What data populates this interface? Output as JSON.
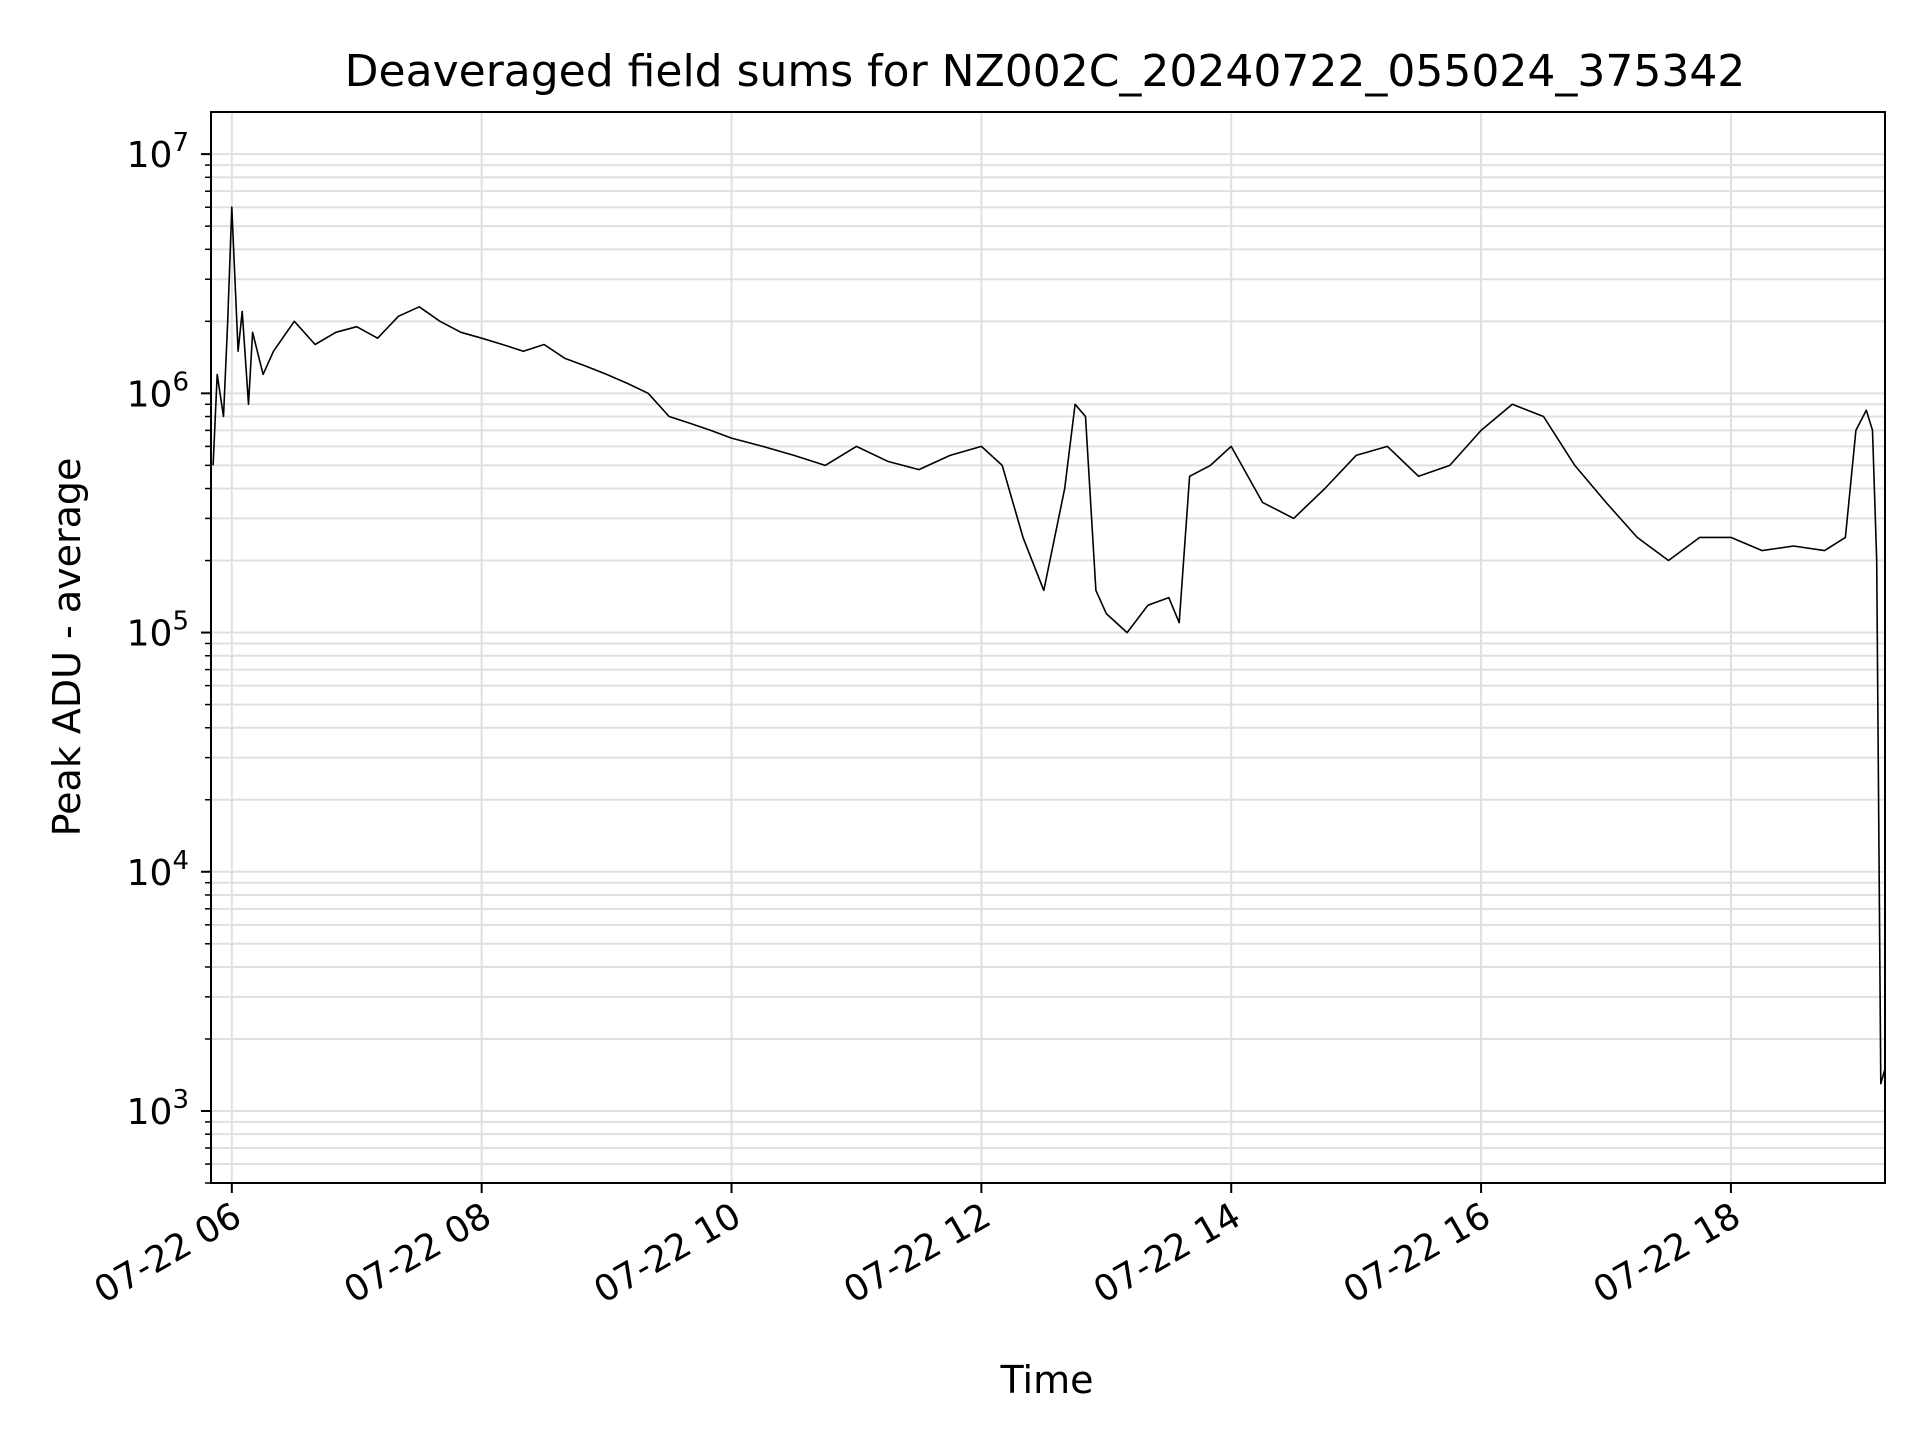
{
  "chart_data": {
    "type": "line",
    "title": "Deaveraged field sums for NZ002C_20240722_055024_375342",
    "xlabel": "Time",
    "ylabel": "Peak ADU - average",
    "yscale": "log",
    "ylim": [
      500,
      15000000
    ],
    "xlim": [
      "2024-07-22 05:50",
      "2024-07-22 19:14"
    ],
    "grid": true,
    "legend": "none",
    "colors": {
      "line": "#000000",
      "grid": "#e0e0e0",
      "axes": "#000000"
    },
    "x_ticks": [
      {
        "label": "07-22 06",
        "time": "2024-07-22 06:00"
      },
      {
        "label": "07-22 08",
        "time": "2024-07-22 08:00"
      },
      {
        "label": "07-22 10",
        "time": "2024-07-22 10:00"
      },
      {
        "label": "07-22 12",
        "time": "2024-07-22 12:00"
      },
      {
        "label": "07-22 14",
        "time": "2024-07-22 14:00"
      },
      {
        "label": "07-22 16",
        "time": "2024-07-22 16:00"
      },
      {
        "label": "07-22 18",
        "time": "2024-07-22 18:00"
      }
    ],
    "y_ticks": [
      {
        "base": "10",
        "exp": "3",
        "value": 1000
      },
      {
        "base": "10",
        "exp": "4",
        "value": 10000
      },
      {
        "base": "10",
        "exp": "5",
        "value": 100000
      },
      {
        "base": "10",
        "exp": "6",
        "value": 1000000
      },
      {
        "base": "10",
        "exp": "7",
        "value": 10000000
      }
    ],
    "series": [
      {
        "x": [
          "2024-07-22 05:51",
          "2024-07-22 05:53",
          "2024-07-22 05:56",
          "2024-07-22 05:58",
          "2024-07-22 06:00",
          "2024-07-22 06:03",
          "2024-07-22 06:05",
          "2024-07-22 06:08",
          "2024-07-22 06:10",
          "2024-07-22 06:15",
          "2024-07-22 06:20",
          "2024-07-22 06:30",
          "2024-07-22 06:40",
          "2024-07-22 06:50",
          "2024-07-22 07:00",
          "2024-07-22 07:10",
          "2024-07-22 07:20",
          "2024-07-22 07:30",
          "2024-07-22 07:40",
          "2024-07-22 07:50",
          "2024-07-22 08:00",
          "2024-07-22 08:10",
          "2024-07-22 08:20",
          "2024-07-22 08:30",
          "2024-07-22 08:40",
          "2024-07-22 08:50",
          "2024-07-22 09:00",
          "2024-07-22 09:10",
          "2024-07-22 09:20",
          "2024-07-22 09:30",
          "2024-07-22 09:40",
          "2024-07-22 09:50",
          "2024-07-22 10:00",
          "2024-07-22 10:15",
          "2024-07-22 10:30",
          "2024-07-22 10:45",
          "2024-07-22 11:00",
          "2024-07-22 11:15",
          "2024-07-22 11:30",
          "2024-07-22 11:45",
          "2024-07-22 12:00",
          "2024-07-22 12:10",
          "2024-07-22 12:20",
          "2024-07-22 12:30",
          "2024-07-22 12:40",
          "2024-07-22 12:45",
          "2024-07-22 12:50",
          "2024-07-22 12:55",
          "2024-07-22 13:00",
          "2024-07-22 13:10",
          "2024-07-22 13:20",
          "2024-07-22 13:30",
          "2024-07-22 13:35",
          "2024-07-22 13:40",
          "2024-07-22 13:50",
          "2024-07-22 14:00",
          "2024-07-22 14:15",
          "2024-07-22 14:30",
          "2024-07-22 14:45",
          "2024-07-22 15:00",
          "2024-07-22 15:15",
          "2024-07-22 15:30",
          "2024-07-22 15:45",
          "2024-07-22 16:00",
          "2024-07-22 16:15",
          "2024-07-22 16:30",
          "2024-07-22 16:45",
          "2024-07-22 17:00",
          "2024-07-22 17:15",
          "2024-07-22 17:30",
          "2024-07-22 17:45",
          "2024-07-22 18:00",
          "2024-07-22 18:15",
          "2024-07-22 18:30",
          "2024-07-22 18:45",
          "2024-07-22 18:55",
          "2024-07-22 19:00",
          "2024-07-22 19:05",
          "2024-07-22 19:08",
          "2024-07-22 19:10",
          "2024-07-22 19:12",
          "2024-07-22 19:14"
        ],
        "y": [
          500000,
          1200000,
          800000,
          2000000,
          6000000,
          1500000,
          2200000,
          900000,
          1800000,
          1200000,
          1500000,
          2000000,
          1600000,
          1800000,
          1900000,
          1700000,
          2100000,
          2300000,
          2000000,
          1800000,
          1700000,
          1600000,
          1500000,
          1600000,
          1400000,
          1300000,
          1200000,
          1100000,
          1000000,
          800000,
          750000,
          700000,
          650000,
          600000,
          550000,
          500000,
          600000,
          520000,
          480000,
          550000,
          600000,
          500000,
          250000,
          150000,
          400000,
          900000,
          800000,
          150000,
          120000,
          100000,
          130000,
          140000,
          110000,
          450000,
          500000,
          600000,
          350000,
          300000,
          400000,
          550000,
          600000,
          450000,
          500000,
          700000,
          900000,
          800000,
          500000,
          350000,
          250000,
          200000,
          250000,
          250000,
          220000,
          230000,
          220000,
          250000,
          700000,
          850000,
          700000,
          200000,
          1300,
          1500
        ]
      }
    ]
  }
}
